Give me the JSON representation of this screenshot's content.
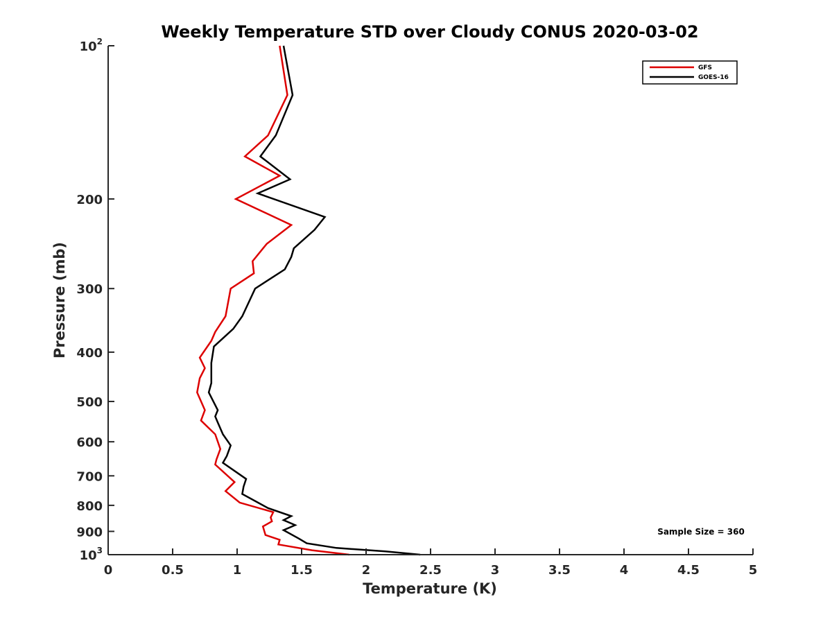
{
  "chart_data": {
    "type": "line",
    "title": "Weekly Temperature STD over Cloudy CONUS 2020-03-02",
    "xlabel": "Temperature (K)",
    "ylabel": "Pressure (mb)",
    "xlim": [
      0,
      5
    ],
    "ylim": [
      100,
      1000
    ],
    "y_scale": "log",
    "y_reversed": true,
    "grid": false,
    "legend_position": "top-right",
    "x_ticks": [
      0,
      0.5,
      1,
      1.5,
      2,
      2.5,
      3,
      3.5,
      4,
      4.5,
      5
    ],
    "x_tick_labels": [
      "0",
      "0.5",
      "1",
      "1.5",
      "2",
      "2.5",
      "3",
      "3.5",
      "4",
      "4.5",
      "5"
    ],
    "y_ticks": [
      {
        "value": 100,
        "label": "10",
        "sup": "2"
      },
      {
        "value": 200,
        "label": "200",
        "sup": ""
      },
      {
        "value": 300,
        "label": "300",
        "sup": ""
      },
      {
        "value": 400,
        "label": "400",
        "sup": ""
      },
      {
        "value": 500,
        "label": "500",
        "sup": ""
      },
      {
        "value": 600,
        "label": "600",
        "sup": ""
      },
      {
        "value": 700,
        "label": "700",
        "sup": ""
      },
      {
        "value": 800,
        "label": "800",
        "sup": ""
      },
      {
        "value": 900,
        "label": "900",
        "sup": ""
      },
      {
        "value": 1000,
        "label": "10",
        "sup": "3"
      }
    ],
    "annotation": "Sample Size = 360",
    "series": [
      {
        "name": "GFS",
        "color": "#dd0000",
        "points": [
          [
            1.33,
            100
          ],
          [
            1.39,
            125
          ],
          [
            1.24,
            150
          ],
          [
            1.06,
            165
          ],
          [
            1.33,
            180
          ],
          [
            0.99,
            200
          ],
          [
            1.42,
            225
          ],
          [
            1.23,
            245
          ],
          [
            1.12,
            265
          ],
          [
            1.13,
            280
          ],
          [
            0.95,
            300
          ],
          [
            0.91,
            340
          ],
          [
            0.83,
            365
          ],
          [
            0.8,
            380
          ],
          [
            0.71,
            410
          ],
          [
            0.75,
            430
          ],
          [
            0.71,
            450
          ],
          [
            0.69,
            480
          ],
          [
            0.75,
            520
          ],
          [
            0.72,
            545
          ],
          [
            0.83,
            580
          ],
          [
            0.87,
            620
          ],
          [
            0.84,
            650
          ],
          [
            0.83,
            665
          ],
          [
            0.98,
            720
          ],
          [
            0.91,
            750
          ],
          [
            1.02,
            790
          ],
          [
            1.28,
            825
          ],
          [
            1.26,
            845
          ],
          [
            1.27,
            860
          ],
          [
            1.2,
            880
          ],
          [
            1.22,
            915
          ],
          [
            1.33,
            935
          ],
          [
            1.32,
            955
          ],
          [
            1.58,
            980
          ],
          [
            1.87,
            1000
          ]
        ]
      },
      {
        "name": "GOES-16",
        "color": "#000000",
        "points": [
          [
            1.36,
            100
          ],
          [
            1.43,
            125
          ],
          [
            1.3,
            150
          ],
          [
            1.18,
            165
          ],
          [
            1.41,
            183
          ],
          [
            1.16,
            195
          ],
          [
            1.68,
            217
          ],
          [
            1.6,
            230
          ],
          [
            1.44,
            250
          ],
          [
            1.42,
            260
          ],
          [
            1.37,
            275
          ],
          [
            1.14,
            300
          ],
          [
            1.04,
            340
          ],
          [
            0.97,
            360
          ],
          [
            0.82,
            390
          ],
          [
            0.8,
            420
          ],
          [
            0.8,
            460
          ],
          [
            0.78,
            480
          ],
          [
            0.85,
            520
          ],
          [
            0.83,
            535
          ],
          [
            0.85,
            550
          ],
          [
            0.89,
            580
          ],
          [
            0.95,
            610
          ],
          [
            0.92,
            640
          ],
          [
            0.89,
            660
          ],
          [
            1.07,
            710
          ],
          [
            1.05,
            735
          ],
          [
            1.04,
            760
          ],
          [
            1.24,
            810
          ],
          [
            1.42,
            840
          ],
          [
            1.36,
            855
          ],
          [
            1.45,
            875
          ],
          [
            1.36,
            895
          ],
          [
            1.48,
            930
          ],
          [
            1.54,
            950
          ],
          [
            1.77,
            970
          ],
          [
            2.15,
            985
          ],
          [
            2.42,
            1000
          ]
        ]
      }
    ]
  }
}
